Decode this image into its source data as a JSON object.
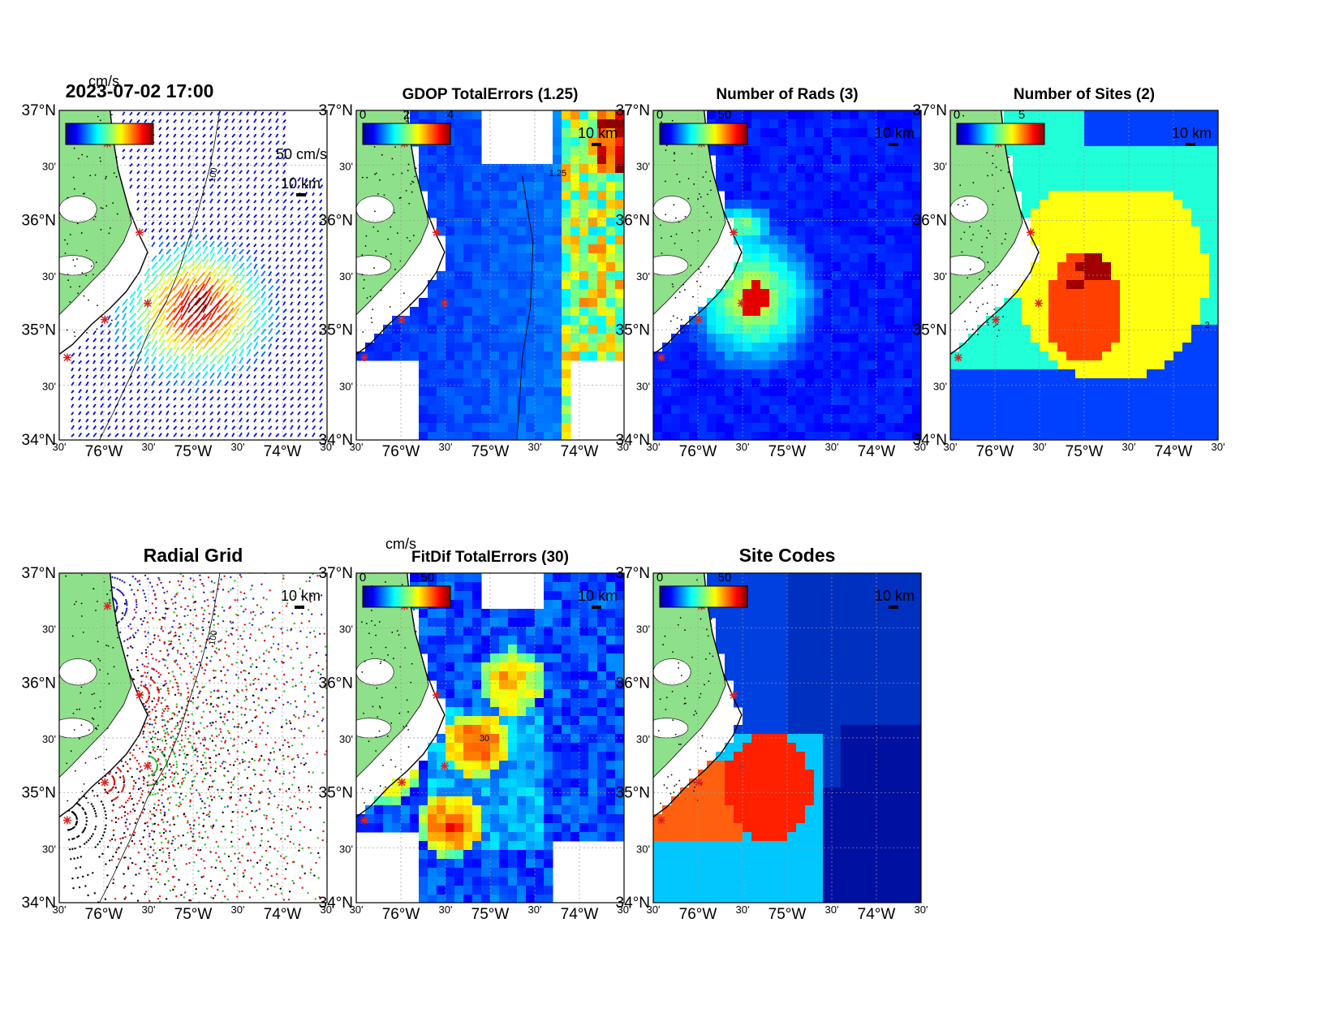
{
  "figure": {
    "timestamp": "2023-07-02 17:00",
    "lat_labels": [
      "37°N",
      "30'",
      "36°N",
      "30'",
      "35°N",
      "30'",
      "34°N"
    ],
    "lon_labels": [
      "30'",
      "76°W",
      "30'",
      "75°W",
      "30'",
      "74°W",
      "30'"
    ],
    "scale_label": "10 km",
    "vector_scale_label": "50 cm/s",
    "depth_contour_label": "100",
    "colors": {
      "land": "#8fe08a",
      "ocean_background": "#ffffff",
      "site_marker": "#e02020",
      "coastline": "#000000"
    }
  },
  "panels": [
    {
      "id": "total-velocity",
      "title": "",
      "colorbar": {
        "unit": "cm/s",
        "ticks": []
      }
    },
    {
      "id": "gdop",
      "title": "GDOP TotalErrors (1.25)",
      "colorbar": {
        "unit": "",
        "ticks": [
          "0",
          "2",
          "4"
        ]
      },
      "contour_label": "1.25"
    },
    {
      "id": "num-rads",
      "title": "Number of Rads (3)",
      "colorbar": {
        "unit": "",
        "ticks": [
          "0",
          "50"
        ]
      }
    },
    {
      "id": "num-sites",
      "title": "Number of Sites (2)",
      "colorbar": {
        "unit": "",
        "ticks": [
          "0",
          "5"
        ]
      },
      "contour_label": "2"
    },
    {
      "id": "radial-grid",
      "title": "Radial Grid",
      "colorbar": null
    },
    {
      "id": "fitdif",
      "title": "FitDif TotalErrors (30)",
      "colorbar": {
        "unit": "cm/s",
        "ticks": [
          "0",
          "50"
        ]
      },
      "contour_label": "30"
    },
    {
      "id": "site-codes",
      "title": "Site Codes",
      "colorbar": {
        "unit": "",
        "ticks": [
          "0",
          "50"
        ]
      }
    }
  ]
}
